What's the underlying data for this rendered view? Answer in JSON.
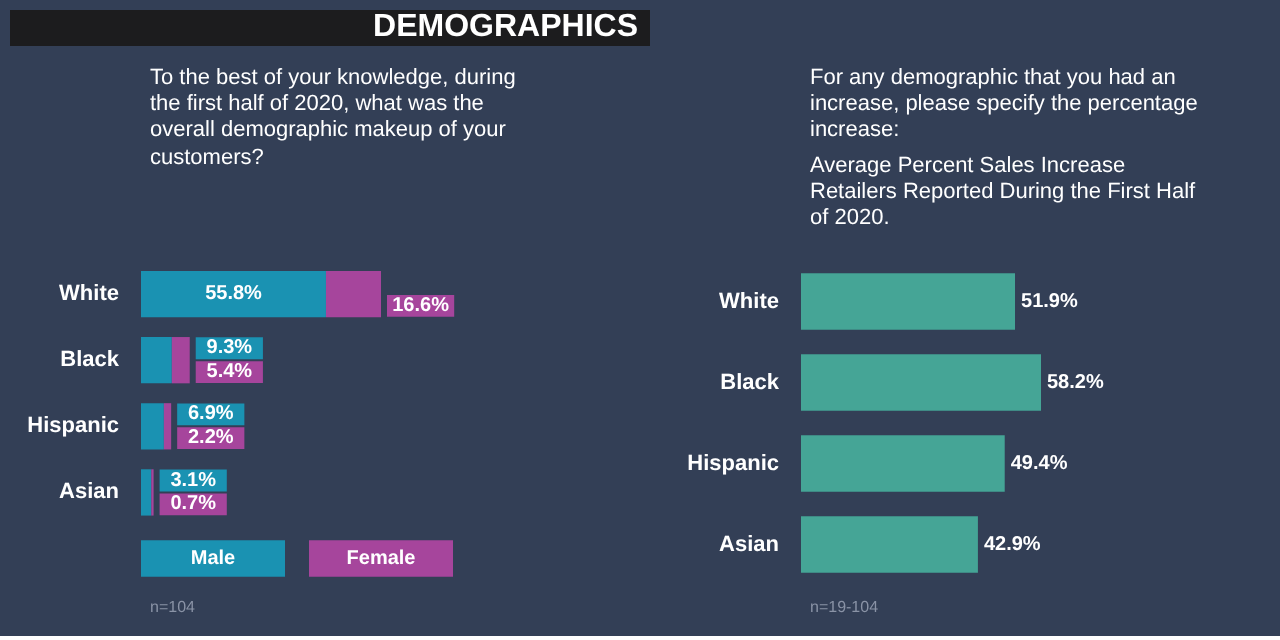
{
  "chart_data": [
    {
      "type": "bar",
      "orientation": "horizontal",
      "stacked": true,
      "title": "DEMOGRAPHICS",
      "subtitle": "To the best of your knowledge, during the first half of 2020, what was the overall demographic makeup of your customers?",
      "categories": [
        "White",
        "Black",
        "Hispanic",
        "Asian"
      ],
      "series": [
        {
          "name": "Male",
          "color": "#1a92b2",
          "values": [
            55.8,
            9.3,
            6.9,
            3.1
          ],
          "value_labels": [
            "55.8%",
            "9.3%",
            "6.9%",
            "3.1%"
          ]
        },
        {
          "name": "Female",
          "color": "#a6459c",
          "values": [
            16.6,
            5.4,
            2.2,
            0.7
          ],
          "value_labels": [
            "16.6%",
            "5.4%",
            "2.2%",
            "0.7%"
          ]
        }
      ],
      "legend": "bottom",
      "annotations": [
        "n=104"
      ]
    },
    {
      "type": "bar",
      "orientation": "horizontal",
      "title": "For any demographic that you had an increase, please specify the percentage increase:",
      "subtitle": "Average Percent Sales Increase Retailers Reported During the First Half of 2020.",
      "categories": [
        "White",
        "Black",
        "Hispanic",
        "Asian"
      ],
      "series": [
        {
          "color": "#45a596",
          "values": [
            51.9,
            58.2,
            49.4,
            42.9
          ],
          "value_labels": [
            "51.9%",
            "58.2%",
            "49.4%",
            "42.9%"
          ]
        }
      ],
      "annotations": [
        "n=19-104"
      ]
    }
  ]
}
